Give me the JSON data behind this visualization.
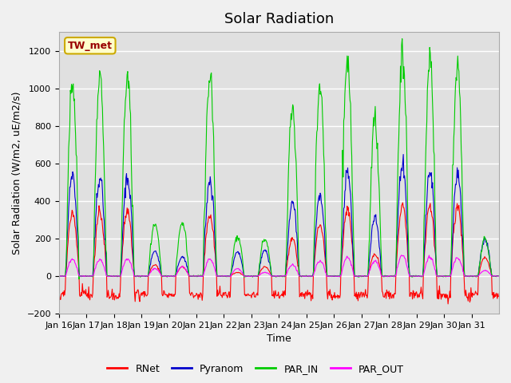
{
  "title": "Solar Radiation",
  "ylabel": "Solar Radiation (W/m2, uE/m2/s)",
  "xlabel": "Time",
  "station_label": "TW_met",
  "ylim": [
    -200,
    1300
  ],
  "yticks": [
    -200,
    0,
    200,
    400,
    600,
    800,
    1000,
    1200
  ],
  "n_days": 16,
  "xtick_labels": [
    "Jan 16",
    "Jan 17",
    "Jan 18",
    "Jan 19",
    "Jan 20",
    "Jan 21",
    "Jan 22",
    "Jan 23",
    "Jan 24",
    "Jan 25",
    "Jan 26",
    "Jan 27",
    "Jan 28",
    "Jan 29",
    "Jan 30",
    "Jan 31"
  ],
  "colors": {
    "RNet": "#ff0000",
    "Pyranom": "#0000cc",
    "PAR_IN": "#00cc00",
    "PAR_OUT": "#ff00ff"
  },
  "background_color": "#e8e8e8",
  "plot_bg_color": "#e0e0e0",
  "title_fontsize": 13,
  "label_fontsize": 9,
  "tick_fontsize": 8,
  "PAR_IN_peaks": [
    1040,
    1050,
    1060,
    270,
    290,
    1070,
    210,
    200,
    890,
    1000,
    1160,
    830,
    1200,
    1160,
    1110,
    200
  ],
  "Pyranom_peaks": [
    550,
    530,
    530,
    130,
    105,
    520,
    130,
    140,
    400,
    430,
    550,
    310,
    600,
    560,
    540,
    200
  ],
  "RNet_peaks": [
    340,
    340,
    340,
    60,
    50,
    320,
    20,
    50,
    200,
    280,
    350,
    120,
    380,
    370,
    370,
    100
  ],
  "PAR_OUT_peaks": [
    90,
    90,
    90,
    40,
    50,
    90,
    40,
    20,
    60,
    80,
    100,
    80,
    110,
    100,
    100,
    30
  ],
  "RNet_night": -100,
  "pts_per_day": 48,
  "random_seed": 42
}
